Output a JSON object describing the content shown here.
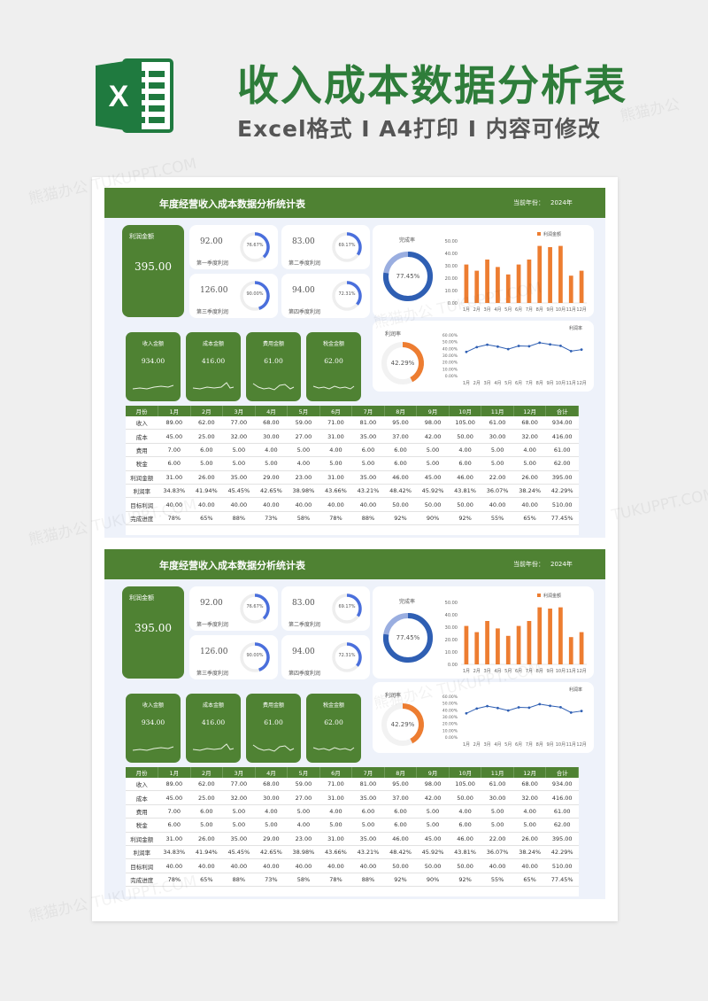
{
  "banner": {
    "title": "收入成本数据分析表",
    "subtitle": "Excel格式 I A4打印 I 内容可修改",
    "logo_letter": "X",
    "logo_icon": "excel-icon"
  },
  "colors": {
    "green": "#4f8233",
    "orange": "#ed7d31",
    "blue": "#2f5fb3",
    "ring_blue": "#4a6fdc"
  },
  "dashboard": {
    "header_title": "年度经营收入成本数据分析统计表",
    "year_label": "当前年份：",
    "year": "2024年",
    "profit_label": "利润金额",
    "profit_value": "395.00",
    "quarters": [
      {
        "value": "92.00",
        "label": "第一季度利润",
        "pct": "76.67%",
        "ratio": 0.7667
      },
      {
        "value": "83.00",
        "label": "第二季度利润",
        "pct": "69.17%",
        "ratio": 0.6917
      },
      {
        "value": "126.00",
        "label": "第三季度利润",
        "pct": "90.00%",
        "ratio": 0.9
      },
      {
        "value": "94.00",
        "label": "第四季度利润",
        "pct": "72.31%",
        "ratio": 0.7231
      }
    ],
    "completion": {
      "label": "完成率",
      "pct": "77.45%",
      "ratio": 0.7745
    },
    "profit_rate": {
      "label": "利润率",
      "pct": "42.29%",
      "ratio": 0.4229
    },
    "metrics": [
      {
        "label": "收入金额",
        "value": "934.00"
      },
      {
        "label": "成本金额",
        "value": "416.00"
      },
      {
        "label": "费用金额",
        "value": "61.00"
      },
      {
        "label": "税金金额",
        "value": "62.00"
      }
    ],
    "table": {
      "headers": [
        "月份",
        "1月",
        "2月",
        "3月",
        "4月",
        "5月",
        "6月",
        "7月",
        "8月",
        "9月",
        "10月",
        "11月",
        "12月",
        "合计"
      ],
      "rows": [
        [
          "收入",
          "89.00",
          "62.00",
          "77.00",
          "68.00",
          "59.00",
          "71.00",
          "81.00",
          "95.00",
          "98.00",
          "105.00",
          "61.00",
          "68.00",
          "934.00"
        ],
        [
          "成本",
          "45.00",
          "25.00",
          "32.00",
          "30.00",
          "27.00",
          "31.00",
          "35.00",
          "37.00",
          "42.00",
          "50.00",
          "30.00",
          "32.00",
          "416.00"
        ],
        [
          "费用",
          "7.00",
          "6.00",
          "5.00",
          "4.00",
          "5.00",
          "4.00",
          "6.00",
          "6.00",
          "5.00",
          "4.00",
          "5.00",
          "4.00",
          "61.00"
        ],
        [
          "税金",
          "6.00",
          "5.00",
          "5.00",
          "5.00",
          "4.00",
          "5.00",
          "5.00",
          "6.00",
          "5.00",
          "6.00",
          "5.00",
          "5.00",
          "62.00"
        ],
        [
          "利润金额",
          "31.00",
          "26.00",
          "35.00",
          "29.00",
          "23.00",
          "31.00",
          "35.00",
          "46.00",
          "45.00",
          "46.00",
          "22.00",
          "26.00",
          "395.00"
        ],
        [
          "利润率",
          "34.83%",
          "41.94%",
          "45.45%",
          "42.65%",
          "38.98%",
          "43.66%",
          "43.21%",
          "48.42%",
          "45.92%",
          "43.81%",
          "36.07%",
          "38.24%",
          "42.29%"
        ],
        [
          "目标利润",
          "40.00",
          "40.00",
          "40.00",
          "40.00",
          "40.00",
          "40.00",
          "40.00",
          "50.00",
          "50.00",
          "50.00",
          "40.00",
          "40.00",
          "510.00"
        ],
        [
          "完成进度",
          "78%",
          "65%",
          "88%",
          "73%",
          "58%",
          "78%",
          "88%",
          "92%",
          "90%",
          "92%",
          "55%",
          "65%",
          "77.45%"
        ]
      ]
    }
  },
  "chart_data": [
    {
      "type": "bar",
      "legend": "利润金额",
      "categories": [
        "1月",
        "2月",
        "3月",
        "4月",
        "5月",
        "6月",
        "7月",
        "8月",
        "9月",
        "10月",
        "11月",
        "12月"
      ],
      "values": [
        31,
        26,
        35,
        29,
        23,
        31,
        35,
        46,
        45,
        46,
        22,
        26
      ],
      "yticks": [
        "0.00",
        "10.00",
        "20.00",
        "30.00",
        "40.00",
        "50.00"
      ],
      "ylim": [
        0,
        50
      ]
    },
    {
      "type": "line",
      "legend": "利润率",
      "categories": [
        "1月",
        "2月",
        "3月",
        "4月",
        "5月",
        "6月",
        "7月",
        "8月",
        "9月",
        "10月",
        "11月",
        "12月"
      ],
      "values": [
        34.83,
        41.94,
        45.45,
        42.65,
        38.98,
        43.66,
        43.21,
        48.42,
        45.92,
        43.81,
        36.07,
        38.24
      ],
      "yticks": [
        "0.00%",
        "10.00%",
        "20.00%",
        "30.00%",
        "40.00%",
        "50.00%",
        "60.00%"
      ],
      "ylim": [
        0,
        60
      ]
    }
  ],
  "watermarks": [
    "熊猫办公 TUKUPPT.COM",
    "熊猫办公",
    "TUKUPPT.COM"
  ]
}
